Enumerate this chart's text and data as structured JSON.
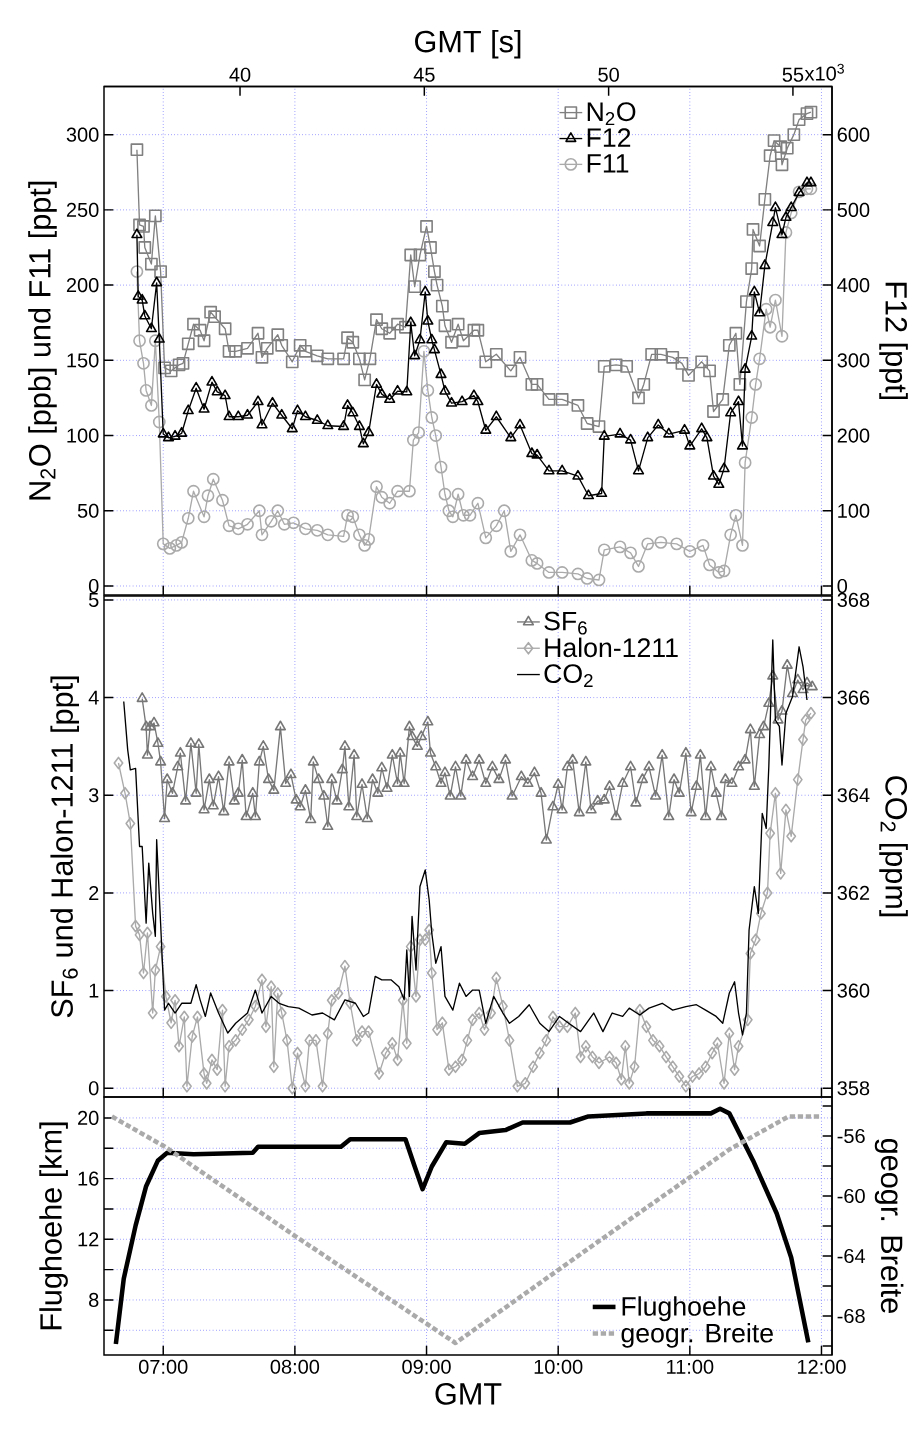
{
  "chart_data": [
    {
      "type": "line",
      "ylabel": "N$_{2}$O [ppb] und F11 [ppt]",
      "y2label": "F12 [ppt]",
      "x2label": "GMT [s]",
      "xlim": [
        6.55,
        12.08
      ],
      "xticks": [
        {
          "value": 7,
          "label": null
        },
        {
          "value": 8,
          "label": null
        },
        {
          "value": 9,
          "label": null
        },
        {
          "value": 10,
          "label": null
        },
        {
          "value": 11,
          "label": null
        },
        {
          "value": 12,
          "label": null
        }
      ],
      "x2lim": [
        36.31,
        56.06
      ],
      "x2ticks": [
        40,
        45,
        50,
        55
      ],
      "annotations": [
        "x10$^{3}$"
      ],
      "ylim": [
        -6,
        332
      ],
      "yticks": [
        0,
        50,
        100,
        150,
        200,
        250,
        300
      ],
      "y2lim": [
        -12,
        664
      ],
      "y2ticks": [
        0,
        100,
        200,
        300,
        400,
        500,
        600
      ],
      "grid": true,
      "legend": "top",
      "tick_labels": "y",
      "series": [
        {
          "name": "N$_{2}$O",
          "color": "#808080",
          "marker": "square",
          "x": [
            6.8,
            6.82,
            6.85,
            6.86,
            6.91,
            6.94,
            6.98,
            7.01,
            7.06,
            7.12,
            7.15,
            7.19,
            7.23,
            7.28,
            7.31,
            7.36,
            7.39,
            7.47,
            7.5,
            7.55,
            7.64,
            7.72,
            7.75,
            7.79,
            7.87,
            7.9,
            7.98,
            8.04,
            8.08,
            8.17,
            8.25,
            8.37,
            8.4,
            8.44,
            8.49,
            8.53,
            8.57,
            8.62,
            8.66,
            8.72,
            8.78,
            8.84,
            8.88,
            8.91,
            8.95,
            9.0,
            9.03,
            9.06,
            9.08,
            9.12,
            9.14,
            9.19,
            9.24,
            9.28,
            9.36,
            9.39,
            9.45,
            9.53,
            9.64,
            9.71,
            9.8,
            9.84,
            9.93,
            10.03,
            10.15,
            10.22,
            10.31,
            10.35,
            10.44,
            10.52,
            10.61,
            10.65,
            10.71,
            10.78,
            10.87,
            10.94,
            10.99,
            11.09,
            11.15,
            11.18,
            11.25,
            11.3,
            11.35,
            11.38,
            11.43,
            11.47,
            11.48,
            11.53,
            11.57,
            11.61,
            11.64,
            11.69,
            11.7,
            11.74,
            11.79,
            11.83,
            11.89,
            11.92
          ],
          "values": [
            290,
            240,
            239,
            225,
            214,
            246,
            209,
            145,
            143,
            147,
            148,
            161,
            174,
            170,
            163,
            182,
            179,
            171,
            156,
            156,
            158,
            168,
            152,
            158,
            167,
            160,
            149,
            160,
            156,
            153,
            151,
            151,
            165,
            162,
            151,
            137,
            151,
            177,
            171,
            168,
            174,
            172,
            220,
            199,
            220,
            239,
            225,
            209,
            200,
            186,
            173,
            162,
            174,
            163,
            170,
            170,
            149,
            154,
            143,
            152,
            134,
            134,
            124,
            124,
            120,
            108,
            106,
            146,
            147,
            146,
            125,
            134,
            154,
            154,
            152,
            148,
            140,
            149,
            143,
            116,
            124,
            160,
            168,
            134,
            189,
            211,
            237,
            226,
            257,
            286,
            296,
            292,
            280,
            291,
            300,
            310,
            314,
            315
          ]
        },
        {
          "name": "F12",
          "color": "#000000",
          "marker": "triangle",
          "axis": "y2",
          "x": [
            6.8,
            6.81,
            6.84,
            6.86,
            6.91,
            6.95,
            6.97,
            7.0,
            7.04,
            7.09,
            7.14,
            7.19,
            7.25,
            7.31,
            7.37,
            7.41,
            7.47,
            7.5,
            7.57,
            7.64,
            7.72,
            7.75,
            7.83,
            7.9,
            7.98,
            8.02,
            8.08,
            8.17,
            8.25,
            8.37,
            8.4,
            8.44,
            8.49,
            8.52,
            8.56,
            8.62,
            8.66,
            8.72,
            8.78,
            8.85,
            8.88,
            8.91,
            8.95,
            8.99,
            9.01,
            9.04,
            9.06,
            9.11,
            9.14,
            9.19,
            9.27,
            9.36,
            9.39,
            9.45,
            9.53,
            9.64,
            9.71,
            9.8,
            9.84,
            9.93,
            10.03,
            10.15,
            10.23,
            10.33,
            10.35,
            10.47,
            10.55,
            10.61,
            10.68,
            10.76,
            10.84,
            10.96,
            11.0,
            11.09,
            11.13,
            11.18,
            11.22,
            11.26,
            11.31,
            11.37,
            11.4,
            11.42,
            11.47,
            11.49,
            11.53,
            11.57,
            11.63,
            11.65,
            11.7,
            11.73,
            11.77,
            11.83,
            11.89,
            11.92
          ],
          "values": [
            467,
            385,
            380,
            359,
            342,
            403,
            328,
            202,
            197,
            199,
            203,
            233,
            263,
            235,
            271,
            258,
            253,
            225,
            225,
            227,
            245,
            214,
            243,
            227,
            209,
            233,
            225,
            220,
            213,
            212,
            240,
            230,
            212,
            189,
            204,
            268,
            255,
            248,
            259,
            258,
            350,
            306,
            327,
            391,
            352,
            327,
            314,
            281,
            259,
            243,
            245,
            253,
            245,
            207,
            225,
            197,
            214,
            176,
            174,
            153,
            153,
            146,
            120,
            123,
            199,
            202,
            194,
            153,
            197,
            214,
            202,
            207,
            186,
            209,
            197,
            146,
            135,
            156,
            230,
            245,
            186,
            288,
            332,
            391,
            363,
            426,
            483,
            503,
            467,
            490,
            503,
            523,
            536,
            536
          ]
        },
        {
          "name": "F11",
          "color": "#aaaaaa",
          "marker": "circle",
          "x": [
            6.8,
            6.82,
            6.85,
            6.87,
            6.91,
            6.94,
            6.97,
            7.0,
            7.05,
            7.1,
            7.14,
            7.19,
            7.23,
            7.31,
            7.34,
            7.38,
            7.45,
            7.5,
            7.57,
            7.64,
            7.73,
            7.75,
            7.82,
            7.87,
            7.92,
            7.99,
            8.08,
            8.17,
            8.25,
            8.37,
            8.4,
            8.44,
            8.49,
            8.53,
            8.56,
            8.62,
            8.66,
            8.72,
            8.78,
            8.87,
            8.9,
            8.94,
            8.98,
            9.01,
            9.04,
            9.07,
            9.11,
            9.14,
            9.17,
            9.2,
            9.24,
            9.28,
            9.33,
            9.39,
            9.45,
            9.53,
            9.59,
            9.64,
            9.71,
            9.8,
            9.84,
            9.93,
            10.03,
            10.15,
            10.22,
            10.31,
            10.35,
            10.47,
            10.55,
            10.61,
            10.68,
            10.78,
            10.9,
            11.0,
            11.1,
            11.15,
            11.22,
            11.26,
            11.31,
            11.35,
            11.4,
            11.42,
            11.47,
            11.5,
            11.53,
            11.58,
            11.61,
            11.65,
            11.7,
            11.73,
            11.77,
            11.83,
            11.89,
            11.92
          ],
          "values": [
            209,
            163,
            148,
            130,
            120,
            163,
            109,
            28,
            25,
            27,
            29,
            45,
            63,
            46,
            60,
            71,
            57,
            40,
            38,
            41,
            50,
            34,
            43,
            50,
            41,
            42,
            38,
            37,
            34,
            33,
            47,
            46,
            34,
            27,
            31,
            66,
            59,
            55,
            63,
            63,
            97,
            102,
            156,
            130,
            112,
            100,
            79,
            61,
            50,
            46,
            61,
            47,
            47,
            55,
            32,
            40,
            50,
            23,
            34,
            17,
            15,
            9,
            9,
            8,
            5,
            4,
            24,
            26,
            22,
            13,
            28,
            29,
            28,
            23,
            27,
            14,
            9,
            10,
            34,
            47,
            27,
            82,
            112,
            134,
            151,
            184,
            172,
            190,
            166,
            235,
            248,
            262,
            264,
            264
          ]
        }
      ]
    },
    {
      "type": "line",
      "ylabel": "SF$_{6}$ und Halon-1211 [ppt]",
      "y2label": "CO$_{2}$ [ppm]",
      "xlim": [
        6.55,
        12.08
      ],
      "xticks": [
        {
          "value": 7,
          "label": null
        },
        {
          "value": 8,
          "label": null
        },
        {
          "value": 9,
          "label": null
        },
        {
          "value": 10,
          "label": null
        },
        {
          "value": 11,
          "label": null
        },
        {
          "value": 12,
          "label": null
        }
      ],
      "ylim": [
        -0.09,
        5.04
      ],
      "yticks": [
        0,
        1,
        2,
        3,
        4,
        5
      ],
      "y2lim": [
        357.82,
        368.08
      ],
      "y2ticks": [
        358,
        360,
        362,
        364,
        366,
        368
      ],
      "grid": true,
      "legend": "top",
      "tick_labels": "y",
      "series": [
        {
          "name": "SF$_{6}$",
          "color": "#777777",
          "marker": "triangle",
          "x": [
            6.84,
            6.87,
            6.88,
            6.9,
            6.93,
            6.96,
            6.98,
            7.01,
            7.03,
            7.07,
            7.11,
            7.13,
            7.17,
            7.21,
            7.25,
            7.27,
            7.31,
            7.35,
            7.38,
            7.42,
            7.46,
            7.5,
            7.54,
            7.57,
            7.6,
            7.63,
            7.68,
            7.7,
            7.73,
            7.76,
            7.8,
            7.84,
            7.89,
            7.93,
            7.97,
            8.01,
            8.04,
            8.08,
            8.12,
            8.14,
            8.18,
            8.22,
            8.25,
            8.28,
            8.32,
            8.36,
            8.38,
            8.41,
            8.45,
            8.47,
            8.51,
            8.55,
            8.59,
            8.63,
            8.66,
            8.7,
            8.74,
            8.78,
            8.8,
            8.83,
            8.87,
            8.89,
            8.93,
            8.96,
            9.01,
            9.03,
            9.07,
            9.11,
            9.14,
            9.18,
            9.22,
            9.26,
            9.3,
            9.35,
            9.4,
            9.45,
            9.5,
            9.55,
            9.6,
            9.65,
            9.72,
            9.77,
            9.82,
            9.87,
            9.91,
            9.96,
            10.0,
            10.03,
            10.07,
            10.11,
            10.16,
            10.21,
            10.25,
            10.3,
            10.35,
            10.39,
            10.44,
            10.49,
            10.55,
            10.59,
            10.64,
            10.69,
            10.74,
            10.79,
            10.84,
            10.88,
            10.92,
            10.97,
            11.01,
            11.05,
            11.08,
            11.12,
            11.16,
            11.2,
            11.24,
            11.27,
            11.32,
            11.37,
            11.42,
            11.46,
            11.49,
            11.53,
            11.56,
            11.6,
            11.63,
            11.67,
            11.7,
            11.74,
            11.78,
            11.82,
            11.86,
            11.89,
            11.93
          ],
          "values": [
            3.99,
            3.7,
            3.41,
            3.7,
            3.74,
            3.53,
            3.34,
            2.76,
            3.16,
            3.02,
            3.29,
            3.43,
            2.94,
            3.53,
            3.02,
            3.52,
            2.85,
            3.16,
            2.89,
            3.19,
            2.83,
            3.34,
            2.94,
            3.02,
            3.36,
            2.78,
            3.02,
            2.78,
            3.34,
            3.5,
            3.16,
            3.05,
            3.7,
            3.12,
            3.21,
            2.95,
            2.88,
            3.05,
            2.75,
            3.34,
            3.16,
            2.99,
            2.68,
            3.16,
            2.94,
            3.26,
            3.5,
            2.88,
            3.41,
            2.78,
            3.11,
            2.76,
            3.16,
            3.02,
            3.28,
            3.07,
            3.41,
            3.12,
            3.43,
            3.12,
            3.7,
            3.6,
            3.5,
            3.6,
            3.75,
            3.43,
            3.29,
            3.12,
            3.23,
            2.99,
            3.29,
            2.99,
            3.36,
            3.19,
            3.36,
            3.12,
            3.29,
            3.16,
            3.36,
            2.99,
            3.19,
            3.12,
            3.23,
            3.02,
            2.54,
            2.88,
            3.11,
            2.85,
            3.29,
            3.36,
            2.82,
            3.34,
            2.85,
            2.94,
            2.95,
            3.09,
            2.78,
            3.12,
            3.29,
            2.92,
            3.16,
            3.29,
            2.99,
            3.41,
            2.78,
            3.16,
            3.02,
            3.43,
            2.82,
            3.09,
            3.41,
            2.78,
            3.29,
            3.02,
            2.78,
            3.16,
            3.12,
            3.29,
            3.36,
            3.67,
            3.09,
            3.62,
            3.7,
            3.94,
            4.22,
            3.77,
            3.86,
            4.33,
            4.04,
            4.18,
            4.08,
            4.15,
            4.11
          ]
        },
        {
          "name": "Halon-1211",
          "color": "#aaaaaa",
          "marker": "diamond",
          "x": [
            6.66,
            6.71,
            6.75,
            6.79,
            6.82,
            6.85,
            6.88,
            6.92,
            6.94,
            6.98,
            7.02,
            7.06,
            7.09,
            7.12,
            7.16,
            7.18,
            7.22,
            7.26,
            7.31,
            7.33,
            7.37,
            7.41,
            7.45,
            7.47,
            7.5,
            7.55,
            7.6,
            7.65,
            7.7,
            7.75,
            7.78,
            7.82,
            7.84,
            7.87,
            7.9,
            7.94,
            7.98,
            8.02,
            8.08,
            8.11,
            8.16,
            8.21,
            8.25,
            8.28,
            8.33,
            8.38,
            8.42,
            8.47,
            8.51,
            8.56,
            8.64,
            8.69,
            8.74,
            8.78,
            8.82,
            8.85,
            8.88,
            8.92,
            8.95,
            8.99,
            9.02,
            9.04,
            9.08,
            9.12,
            9.17,
            9.22,
            9.27,
            9.31,
            9.35,
            9.4,
            9.44,
            9.49,
            9.53,
            9.58,
            9.63,
            9.69,
            9.75,
            9.81,
            9.86,
            9.91,
            9.96,
            10.01,
            10.07,
            10.13,
            10.17,
            10.21,
            10.26,
            10.31,
            10.39,
            10.44,
            10.48,
            10.51,
            10.54,
            10.58,
            10.62,
            10.67,
            10.72,
            10.77,
            10.82,
            10.87,
            10.92,
            10.97,
            11.02,
            11.07,
            11.12,
            11.17,
            11.21,
            11.26,
            11.3,
            11.34,
            11.37,
            11.44,
            11.46,
            11.5,
            11.54,
            11.59,
            11.61,
            11.65,
            11.69,
            11.73,
            11.77,
            11.82,
            11.86,
            11.88,
            11.92
          ],
          "values": [
            3.33,
            3.02,
            2.71,
            1.66,
            1.57,
            1.18,
            1.59,
            0.77,
            1.21,
            1.45,
            0.94,
            0.67,
            0.9,
            0.43,
            0.73,
            0.02,
            0.53,
            0.73,
            0.15,
            0.05,
            0.29,
            0.19,
            0.8,
            0.02,
            0.43,
            0.49,
            0.6,
            0.7,
            0.84,
            1.11,
            0.63,
            1.04,
            0.22,
            0.97,
            0.77,
            0.49,
            0.0,
            0.36,
            0.02,
            0.49,
            0.49,
            0.02,
            0.56,
            0.9,
            0.97,
            1.25,
            0.87,
            0.49,
            0.58,
            0.58,
            0.15,
            0.36,
            0.46,
            0.29,
            0.9,
            0.46,
            1.45,
            0.94,
            1.52,
            1.52,
            1.62,
            1.18,
            0.6,
            0.67,
            0.19,
            0.22,
            0.29,
            0.49,
            0.7,
            0.77,
            0.6,
            0.77,
            1.13,
            0.84,
            0.49,
            0.02,
            0.05,
            0.22,
            0.36,
            0.49,
            0.73,
            0.63,
            0.63,
            0.77,
            0.32,
            0.43,
            0.32,
            0.26,
            0.32,
            0.26,
            0.09,
            0.43,
            0.05,
            0.22,
            0.8,
            0.63,
            0.49,
            0.43,
            0.32,
            0.22,
            0.12,
            0.02,
            0.12,
            0.15,
            0.22,
            0.36,
            0.46,
            0.05,
            0.56,
            0.19,
            0.43,
            0.7,
            1.38,
            1.52,
            1.79,
            2.0,
            2.61,
            3.02,
            2.2,
            2.85,
            2.58,
            3.16,
            3.57,
            3.77,
            3.84
          ]
        },
        {
          "name": "CO$_{2}$",
          "color": "#000000",
          "marker": "none",
          "axis": "y2",
          "x": [
            6.7,
            6.73,
            6.75,
            6.79,
            6.82,
            6.84,
            6.87,
            6.89,
            6.92,
            6.94,
            6.95,
            6.98,
            7.01,
            7.04,
            7.09,
            7.14,
            7.21,
            7.25,
            7.28,
            7.32,
            7.36,
            7.42,
            7.49,
            7.55,
            7.64,
            7.7,
            7.75,
            7.82,
            7.88,
            7.95,
            8.03,
            8.13,
            8.21,
            8.3,
            8.38,
            8.46,
            8.52,
            8.56,
            8.61,
            8.66,
            8.73,
            8.79,
            8.83,
            8.85,
            8.87,
            8.89,
            8.92,
            8.95,
            8.99,
            9.02,
            9.04,
            9.07,
            9.11,
            9.14,
            9.2,
            9.25,
            9.3,
            9.35,
            9.4,
            9.45,
            9.51,
            9.58,
            9.63,
            9.7,
            9.78,
            9.86,
            9.93,
            10.01,
            10.08,
            10.17,
            10.27,
            10.34,
            10.41,
            10.49,
            10.54,
            10.62,
            10.69,
            10.79,
            10.87,
            10.97,
            11.05,
            11.12,
            11.2,
            11.25,
            11.3,
            11.34,
            11.37,
            11.4,
            11.43,
            11.45,
            11.49,
            11.52,
            11.55,
            11.58,
            11.6,
            11.63,
            11.65,
            11.68,
            11.7,
            11.73,
            11.78,
            11.83,
            11.86,
            11.89
          ],
          "values": [
            365.92,
            364.93,
            364.52,
            364.55,
            362.95,
            362.95,
            361.38,
            362.61,
            361.58,
            361.11,
            363.09,
            361.38,
            359.6,
            359.74,
            359.54,
            359.74,
            359.74,
            360.12,
            359.81,
            359.47,
            359.95,
            359.54,
            359.13,
            359.33,
            359.54,
            360.01,
            359.54,
            359.88,
            359.74,
            359.67,
            359.64,
            359.5,
            359.54,
            359.4,
            359.81,
            359.74,
            359.47,
            359.54,
            360.29,
            360.22,
            360.22,
            360.08,
            359.81,
            360.83,
            359.88,
            361.52,
            360.42,
            362.13,
            362.47,
            361.86,
            361.17,
            360.56,
            360.9,
            359.88,
            359.6,
            360.15,
            359.88,
            360.01,
            360.01,
            359.33,
            359.88,
            359.54,
            359.33,
            359.47,
            359.71,
            359.33,
            359.16,
            359.47,
            359.33,
            359.16,
            359.54,
            359.16,
            359.54,
            359.47,
            359.64,
            359.5,
            359.64,
            359.74,
            359.6,
            359.67,
            359.71,
            359.6,
            359.47,
            359.33,
            359.95,
            360.18,
            359.54,
            359.09,
            359.54,
            361.24,
            362.13,
            361.58,
            363.63,
            363.32,
            364.59,
            367.18,
            365.54,
            365.41,
            364.62,
            365.68,
            366.02,
            367.04,
            366.63,
            365.95
          ]
        }
      ]
    },
    {
      "type": "line",
      "xlabel": "GMT",
      "ylabel": "Flughoehe [km]",
      "y2label": "geogr. Breite",
      "xlim": [
        6.55,
        12.08
      ],
      "xticks": [
        {
          "value": 7,
          "label": "07:00"
        },
        {
          "value": 8,
          "label": "08:00"
        },
        {
          "value": 9,
          "label": "09:00"
        },
        {
          "value": 10,
          "label": "10:00"
        },
        {
          "value": 11,
          "label": "11:00"
        },
        {
          "value": 12,
          "label": "12:00"
        }
      ],
      "ylim": [
        4.37,
        21.38
      ],
      "yticks": [
        {
          "value": 6,
          "label": null
        },
        8,
        {
          "value": 10,
          "label": null
        },
        12,
        {
          "value": 14,
          "label": null
        },
        16,
        {
          "value": 18,
          "label": null
        },
        20
      ],
      "y2lim": [
        -70.6,
        -53.4
      ],
      "y2ticks": [
        {
          "value": -70,
          "label": null
        },
        -68,
        {
          "value": -66,
          "label": null
        },
        -64,
        {
          "value": -62,
          "label": null
        },
        -60,
        {
          "value": -58,
          "label": null
        },
        -56,
        {
          "value": -54,
          "label": null
        }
      ],
      "grid": true,
      "legend": "bottom right",
      "series": [
        {
          "name": "Flughoehe",
          "color": "#000000",
          "marker": "none",
          "x": [
            6.64,
            6.7,
            6.79,
            6.87,
            6.96,
            7.03,
            7.23,
            7.68,
            7.72,
            8.35,
            8.42,
            8.84,
            8.91,
            8.97,
            9.04,
            9.15,
            9.29,
            9.4,
            9.6,
            9.73,
            10.09,
            10.23,
            10.67,
            11.16,
            11.23,
            11.3,
            11.48,
            11.66,
            11.77,
            11.9
          ],
          "values": [
            5.1,
            9.4,
            12.9,
            15.5,
            17.2,
            17.7,
            17.6,
            17.7,
            18.1,
            18.1,
            18.6,
            18.6,
            16.8,
            15.3,
            16.8,
            18.4,
            18.3,
            19.0,
            19.2,
            19.7,
            19.7,
            20.1,
            20.3,
            20.3,
            20.6,
            20.3,
            17.2,
            13.7,
            10.8,
            5.2
          ]
        },
        {
          "name": "geogr. Breite",
          "color": "#aaaaaa",
          "marker": "none",
          "line_style": "dashed",
          "axis": "y2",
          "x": [
            6.61,
            7.01,
            7.99,
            9.22,
            10.23,
            11.3,
            11.75,
            11.99
          ],
          "values": [
            -54.7,
            -56.7,
            -62.6,
            -69.8,
            -63.5,
            -56.9,
            -54.7,
            -54.7
          ]
        }
      ]
    }
  ]
}
